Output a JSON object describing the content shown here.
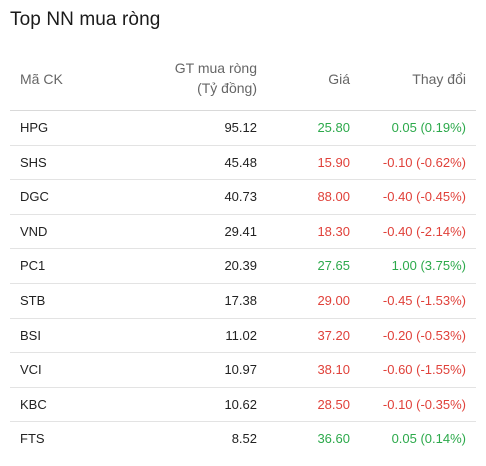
{
  "title": "Top NN mua ròng",
  "columns": {
    "code": "Mã CK",
    "value_line1": "GT mua ròng",
    "value_line2": "(Tỷ đồng)",
    "price": "Giá",
    "change": "Thay đổi"
  },
  "colors": {
    "up": "#2ca94b",
    "down": "#e0413a"
  },
  "rows": [
    {
      "code": "HPG",
      "value": "95.12",
      "price": "25.80",
      "change": "0.05 (0.19%)",
      "direction": "up"
    },
    {
      "code": "SHS",
      "value": "45.48",
      "price": "15.90",
      "change": "-0.10 (-0.62%)",
      "direction": "down"
    },
    {
      "code": "DGC",
      "value": "40.73",
      "price": "88.00",
      "change": "-0.40 (-0.45%)",
      "direction": "down"
    },
    {
      "code": "VND",
      "value": "29.41",
      "price": "18.30",
      "change": "-0.40 (-2.14%)",
      "direction": "down"
    },
    {
      "code": "PC1",
      "value": "20.39",
      "price": "27.65",
      "change": "1.00 (3.75%)",
      "direction": "up"
    },
    {
      "code": "STB",
      "value": "17.38",
      "price": "29.00",
      "change": "-0.45 (-1.53%)",
      "direction": "down"
    },
    {
      "code": "BSI",
      "value": "11.02",
      "price": "37.20",
      "change": "-0.20 (-0.53%)",
      "direction": "down"
    },
    {
      "code": "VCI",
      "value": "10.97",
      "price": "38.10",
      "change": "-0.60 (-1.55%)",
      "direction": "down"
    },
    {
      "code": "KBC",
      "value": "10.62",
      "price": "28.50",
      "change": "-0.10 (-0.35%)",
      "direction": "down"
    },
    {
      "code": "FTS",
      "value": "8.52",
      "price": "36.60",
      "change": "0.05 (0.14%)",
      "direction": "up"
    }
  ]
}
